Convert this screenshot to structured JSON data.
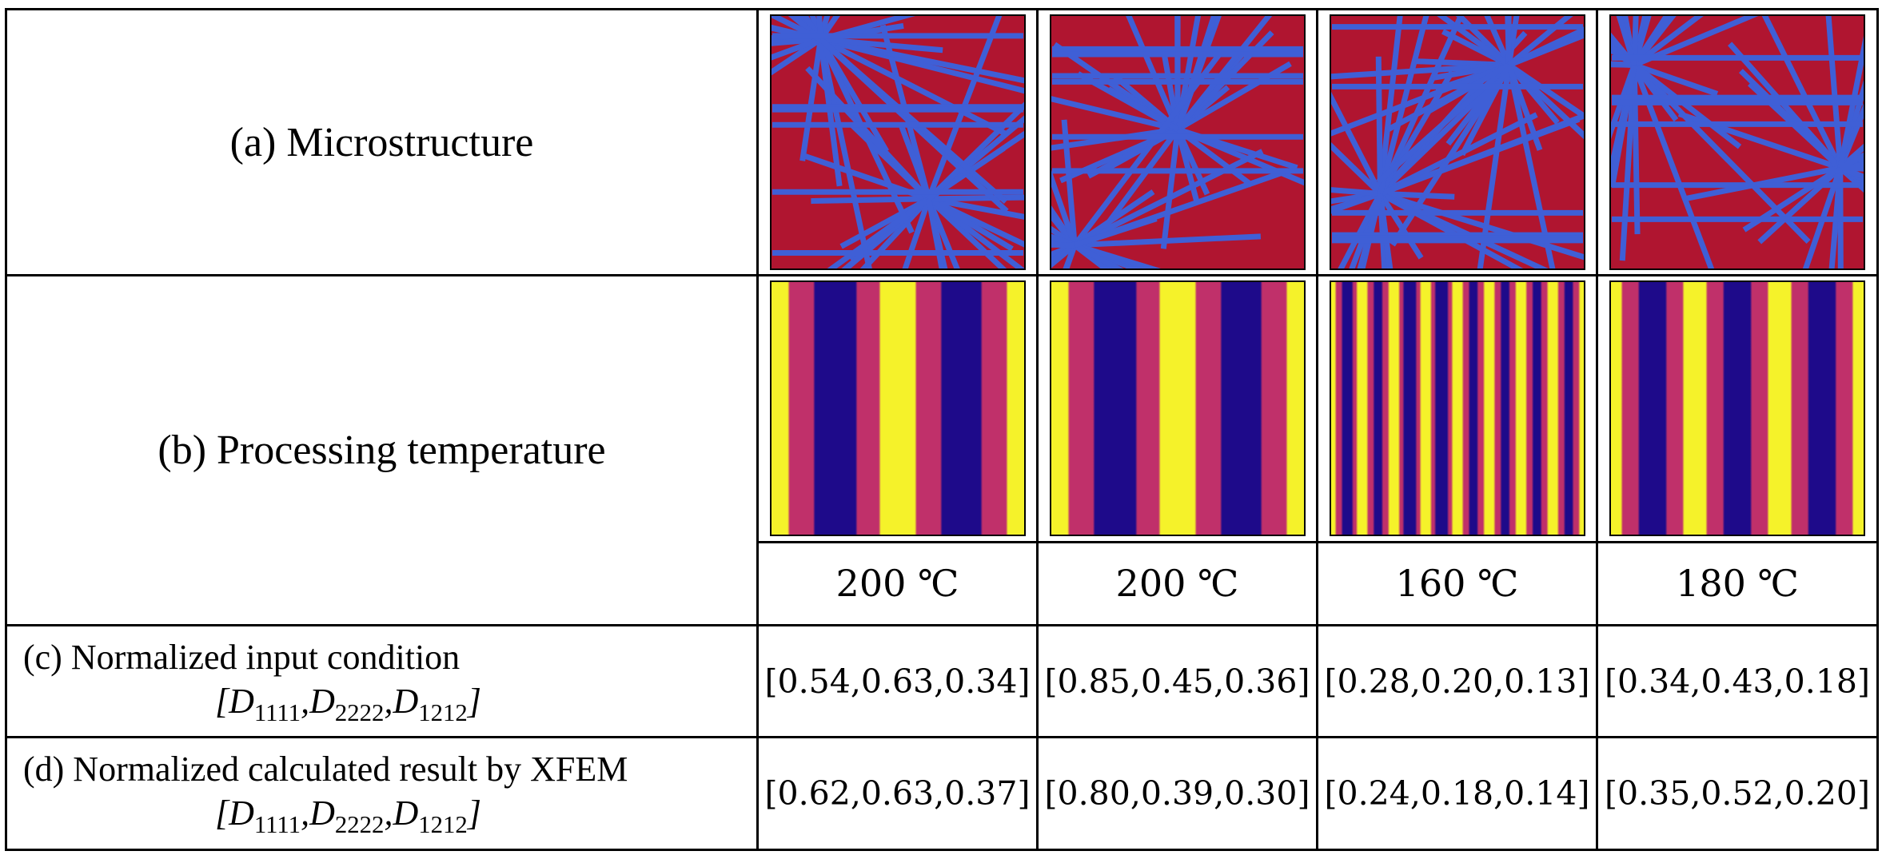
{
  "rows": {
    "a": {
      "label": "(a) Microstructure"
    },
    "b": {
      "label": "(b) Processing temperature"
    },
    "c": {
      "label_line1": "(c) Normalized input condition"
    },
    "d": {
      "label_line1": "(d) Normalized calculated result by XFEM"
    }
  },
  "tensor_vector": {
    "open": "[",
    "sep": ",",
    "close": "]",
    "components": [
      {
        "sym": "D",
        "sub": "1111"
      },
      {
        "sym": "D",
        "sub": "2222"
      },
      {
        "sym": "D",
        "sub": "1212"
      }
    ]
  },
  "samples": [
    {
      "temperature": "200 ℃",
      "input": "[0.54,0.63,0.34]",
      "xfem": "[0.62,0.63,0.37]",
      "stripe_periods": 2,
      "stripe_phase": 0.0
    },
    {
      "temperature": "200 ℃",
      "input": "[0.85,0.45,0.36]",
      "xfem": "[0.80,0.39,0.30]",
      "stripe_periods": 2,
      "stripe_phase": 0.0
    },
    {
      "temperature": "160 ℃",
      "input": "[0.28,0.20,0.13]",
      "xfem": "[0.24,0.18,0.14]",
      "stripe_periods": 8,
      "stripe_phase": 0.0
    },
    {
      "temperature": "180 ℃",
      "input": "[0.34,0.43,0.18]",
      "xfem": "[0.35,0.52,0.20]",
      "stripe_periods": 3,
      "stripe_phase": 0.0
    }
  ],
  "colors": {
    "micro_bg": "#b01530",
    "micro_fiber": "#3f5fd6",
    "heat_low": "#1e0a8a",
    "heat_mid": "#c0306a",
    "heat_high": "#f5f22a"
  }
}
